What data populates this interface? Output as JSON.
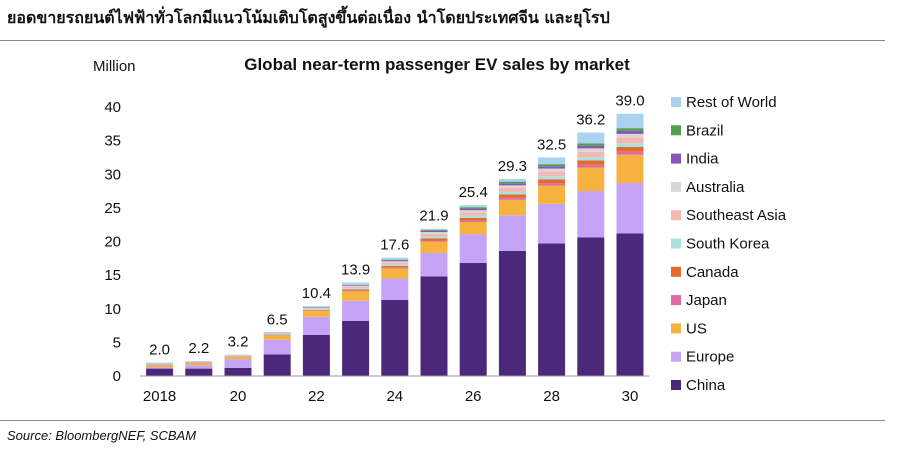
{
  "header": {
    "title": "ยอดขายรถยนต์ไฟฟ้าทั่วโลกมีแนวโน้มเติบโตสูงขึ้นต่อเนื่อง นำโดยประเทศจีน และยุโรป"
  },
  "footer": {
    "source": "Source: BloombergNEF, SCBAM"
  },
  "chart_data": {
    "type": "bar",
    "stacked": true,
    "title": "Global near-term passenger EV sales by market",
    "ylabel": "Million",
    "xlabel": "",
    "ylim": [
      0,
      40
    ],
    "yticks": [
      0,
      5,
      10,
      15,
      20,
      25,
      30,
      35,
      40
    ],
    "categories": [
      "2018",
      "2019",
      "2020",
      "2021",
      "2022",
      "2023",
      "2024",
      "2025",
      "2026",
      "2027",
      "2028",
      "2029",
      "2030"
    ],
    "tick_labels": [
      "2018",
      "",
      "20",
      "",
      "22",
      "",
      "24",
      "",
      "26",
      "",
      "28",
      "",
      "30"
    ],
    "totals": [
      2.0,
      2.2,
      3.2,
      6.5,
      10.4,
      13.9,
      17.6,
      21.9,
      25.4,
      29.3,
      32.5,
      36.2,
      39.0
    ],
    "legend_position": "right",
    "series": [
      {
        "name": "China",
        "color": "#4b2879",
        "values": [
          1.1,
          1.1,
          1.2,
          3.2,
          6.1,
          8.2,
          11.3,
          14.8,
          16.8,
          18.6,
          19.7,
          20.6,
          21.2
        ]
      },
      {
        "name": "Europe",
        "color": "#c5a3f6",
        "values": [
          0.2,
          0.5,
          1.3,
          2.2,
          2.7,
          3.0,
          3.2,
          3.5,
          4.3,
          5.3,
          5.9,
          6.9,
          7.5
        ]
      },
      {
        "name": "US",
        "color": "#f6b23e",
        "values": [
          0.3,
          0.3,
          0.3,
          0.6,
          0.9,
          1.4,
          1.5,
          1.7,
          1.8,
          2.3,
          2.7,
          3.5,
          4.2
        ]
      },
      {
        "name": "Japan",
        "color": "#e06aa4",
        "values": [
          0.05,
          0.05,
          0.05,
          0.05,
          0.05,
          0.1,
          0.1,
          0.15,
          0.2,
          0.3,
          0.35,
          0.4,
          0.45
        ]
      },
      {
        "name": "Canada",
        "color": "#e46a2c",
        "values": [
          0.05,
          0.05,
          0.05,
          0.1,
          0.1,
          0.2,
          0.25,
          0.3,
          0.4,
          0.5,
          0.6,
          0.65,
          0.7
        ]
      },
      {
        "name": "South Korea",
        "color": "#a8e2df",
        "values": [
          0.03,
          0.03,
          0.05,
          0.1,
          0.1,
          0.15,
          0.2,
          0.3,
          0.35,
          0.4,
          0.45,
          0.5,
          0.55
        ]
      },
      {
        "name": "Southeast Asia",
        "color": "#f4b8b0",
        "values": [
          0.02,
          0.02,
          0.05,
          0.05,
          0.1,
          0.2,
          0.3,
          0.4,
          0.5,
          0.6,
          0.7,
          0.8,
          0.85
        ]
      },
      {
        "name": "Australia",
        "color": "#d8d8d8",
        "values": [
          0.02,
          0.02,
          0.05,
          0.05,
          0.1,
          0.15,
          0.2,
          0.25,
          0.3,
          0.35,
          0.45,
          0.5,
          0.55
        ]
      },
      {
        "name": "India",
        "color": "#8a55b8",
        "values": [
          0.01,
          0.01,
          0.02,
          0.02,
          0.05,
          0.1,
          0.15,
          0.2,
          0.25,
          0.3,
          0.35,
          0.4,
          0.45
        ]
      },
      {
        "name": "Brazil",
        "color": "#4ea34a",
        "values": [
          0.01,
          0.01,
          0.02,
          0.02,
          0.05,
          0.05,
          0.1,
          0.15,
          0.2,
          0.25,
          0.3,
          0.35,
          0.4
        ]
      },
      {
        "name": "Rest of World",
        "color": "#a9d3ee",
        "values": [
          0.21,
          0.12,
          0.08,
          0.16,
          0.15,
          0.35,
          0.3,
          0.15,
          0.3,
          0.4,
          1.0,
          1.6,
          2.15
        ]
      }
    ]
  }
}
